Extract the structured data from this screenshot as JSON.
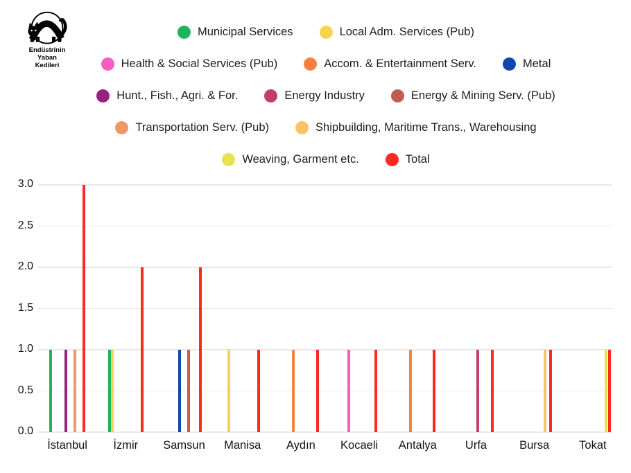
{
  "logo": {
    "lines": [
      "Endüstrinin",
      "Yaban",
      "Kedileri"
    ],
    "icon": "wildcat-logo-icon"
  },
  "colors": {
    "background": "#ffffff",
    "grid": "#e8e8e8",
    "text": "#1a1a1a"
  },
  "legend": {
    "rows": [
      [
        0,
        1
      ],
      [
        2,
        3,
        4
      ],
      [
        5,
        6,
        7
      ],
      [
        8,
        9
      ],
      [
        10,
        11
      ]
    ]
  },
  "chart_data": {
    "type": "bar",
    "categories": [
      "İstanbul",
      "İzmir",
      "Samsun",
      "Manisa",
      "Aydın",
      "Kocaeli",
      "Antalya",
      "Urfa",
      "Bursa",
      "Tokat"
    ],
    "series": [
      {
        "name": "Municipal Services",
        "color": "#1cb45e",
        "values": [
          1,
          1,
          0,
          0,
          0,
          0,
          0,
          0,
          0,
          0
        ]
      },
      {
        "name": "Local Adm. Services (Pub)",
        "color": "#f8d34b",
        "values": [
          0,
          1,
          0,
          1,
          0,
          0,
          0,
          0,
          0,
          0
        ]
      },
      {
        "name": "Health & Social Services (Pub)",
        "color": "#f95dc1",
        "values": [
          0,
          0,
          0,
          0,
          0,
          1,
          0,
          0,
          0,
          0
        ]
      },
      {
        "name": "Accom. & Entertainment Serv.",
        "color": "#f8813f",
        "values": [
          0,
          0,
          0,
          0,
          1,
          0,
          1,
          0,
          0,
          0
        ]
      },
      {
        "name": "Metal",
        "color": "#1146ae",
        "values": [
          0,
          0,
          1,
          0,
          0,
          0,
          0,
          0,
          0,
          0
        ]
      },
      {
        "name": "Hunt., Fish., Agri. & For.",
        "color": "#97217f",
        "values": [
          1,
          0,
          0,
          0,
          0,
          0,
          0,
          0,
          0,
          0
        ]
      },
      {
        "name": "Energy Industry",
        "color": "#c13f62",
        "values": [
          0,
          0,
          0,
          0,
          0,
          0,
          0,
          1,
          0,
          0
        ]
      },
      {
        "name": "Energy & Mining Serv. (Pub)",
        "color": "#c25b50",
        "values": [
          0,
          0,
          1,
          0,
          0,
          0,
          0,
          0,
          0,
          0
        ]
      },
      {
        "name": "Transportation Serv. (Pub)",
        "color": "#eb9a66",
        "values": [
          1,
          0,
          0,
          0,
          0,
          0,
          0,
          0,
          0,
          0
        ]
      },
      {
        "name": "Shipbuilding, Maritime Trans., Warehousing",
        "color": "#f9c267",
        "values": [
          0,
          0,
          0,
          0,
          0,
          0,
          0,
          0,
          1,
          0
        ]
      },
      {
        "name": "Weaving, Garment etc.",
        "color": "#e9e052",
        "values": [
          0,
          0,
          0,
          0,
          0,
          0,
          0,
          0,
          0,
          1
        ]
      },
      {
        "name": "Total",
        "color": "#f92a22",
        "values": [
          3,
          2,
          2,
          1,
          1,
          1,
          1,
          1,
          1,
          1
        ]
      }
    ],
    "y_tick_labels": [
      "0.0",
      "0.5",
      "1.0",
      "1.5",
      "2.0",
      "2.5",
      "3.0"
    ],
    "y_ticks": [
      0,
      0.5,
      1,
      1.5,
      2,
      2.5,
      3
    ],
    "ylim": [
      0,
      3
    ],
    "title": "",
    "xlabel": "",
    "ylabel": "",
    "grid": "horizontal",
    "legend_position": "top"
  }
}
